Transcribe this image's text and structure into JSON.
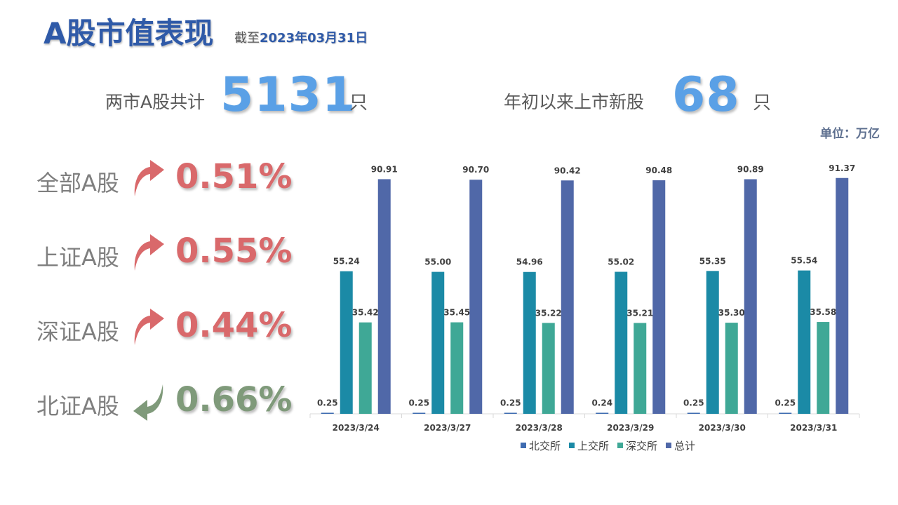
{
  "header": {
    "title": "A股市值表现",
    "date_prefix": "截至",
    "date": "2023年03月31日"
  },
  "stats": {
    "total_label": "两市A股共计",
    "total_value": "5131",
    "total_unit": "只",
    "new_label": "年初以来上市新股",
    "new_value": "68",
    "new_unit": "只"
  },
  "unit_note": "单位：万亿",
  "indices": [
    {
      "name": "全部A股",
      "value": "0.51%",
      "direction": "up",
      "color": "#d9696b",
      "icon": "up-arrow-icon"
    },
    {
      "name": "上证A股",
      "value": "0.55%",
      "direction": "up",
      "color": "#d9696b",
      "icon": "up-arrow-icon"
    },
    {
      "name": "深证A股",
      "value": "0.44%",
      "direction": "up",
      "color": "#d9696b",
      "icon": "up-arrow-icon"
    },
    {
      "name": "北证A股",
      "value": "0.66%",
      "direction": "down",
      "color": "#7f9a7a",
      "icon": "down-arrow-icon"
    }
  ],
  "chart_data": {
    "type": "bar",
    "categories": [
      "2023/3/24",
      "2023/3/27",
      "2023/3/28",
      "2023/3/29",
      "2023/3/30",
      "2023/3/31"
    ],
    "series": [
      {
        "name": "北交所",
        "color": "#3e6bb0",
        "values": [
          0.25,
          0.25,
          0.25,
          0.24,
          0.25,
          0.25
        ],
        "labels": [
          "0.25",
          "0.25",
          "0.25",
          "0.24",
          "0.25",
          "0.25"
        ]
      },
      {
        "name": "上交所",
        "color": "#1b8aa6",
        "values": [
          55.24,
          55.0,
          54.96,
          55.02,
          55.35,
          55.54
        ],
        "labels": [
          "55.24",
          "55.00",
          "54.96",
          "55.02",
          "55.35",
          "55.54"
        ]
      },
      {
        "name": "深交所",
        "color": "#3fa896",
        "values": [
          35.42,
          35.45,
          35.22,
          35.21,
          35.3,
          35.58
        ],
        "labels": [
          "35.42",
          "35.45",
          "35.22",
          "35.21",
          "35.30",
          "35.58"
        ]
      },
      {
        "name": "总计",
        "color": "#5068a8",
        "values": [
          90.91,
          90.7,
          90.42,
          90.48,
          90.89,
          91.37
        ],
        "labels": [
          "90.91",
          "90.70",
          "90.42",
          "90.48",
          "90.89",
          "91.37"
        ]
      }
    ],
    "ylim": [
      0,
      100
    ],
    "grid": false,
    "legend_position": "bottom"
  }
}
